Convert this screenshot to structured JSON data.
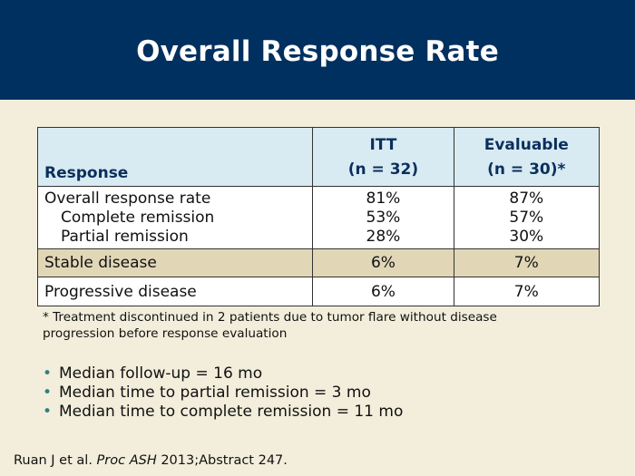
{
  "title": "Overall Response Rate",
  "table": {
    "header": {
      "col1": "Response",
      "col2_line1": "ITT",
      "col2_line2": "(n = 32)",
      "col3_line1": "Evaluable",
      "col3_line2": "(n = 30)*"
    },
    "rows": [
      {
        "label": "Overall response rate",
        "itt": "81%",
        "evaluable": "87%"
      },
      {
        "label": "Complete remission",
        "itt": "53%",
        "evaluable": "57%"
      },
      {
        "label": "Partial remission",
        "itt": "28%",
        "evaluable": "30%"
      },
      {
        "label": "Stable disease",
        "itt": "6%",
        "evaluable": "7%"
      },
      {
        "label": "Progressive disease",
        "itt": "6%",
        "evaluable": "7%"
      }
    ]
  },
  "footnote": "* Treatment discontinued in 2 patients due to tumor flare without disease progression before response evaluation",
  "bullets": [
    "Median follow-up = 16 mo",
    "Median time to partial remission = 3 mo",
    "Median time to complete remission = 11 mo"
  ],
  "citation": {
    "prefix": "Ruan J et al. ",
    "journal": "Proc ASH",
    "suffix": " 2013;Abstract 247."
  },
  "colors": {
    "title_bar": "#00305f",
    "background": "#f2eedb",
    "header_fill": "#d8ebf3",
    "highlight_row": "#e1d7b7",
    "bullet": "#2f7f85"
  }
}
